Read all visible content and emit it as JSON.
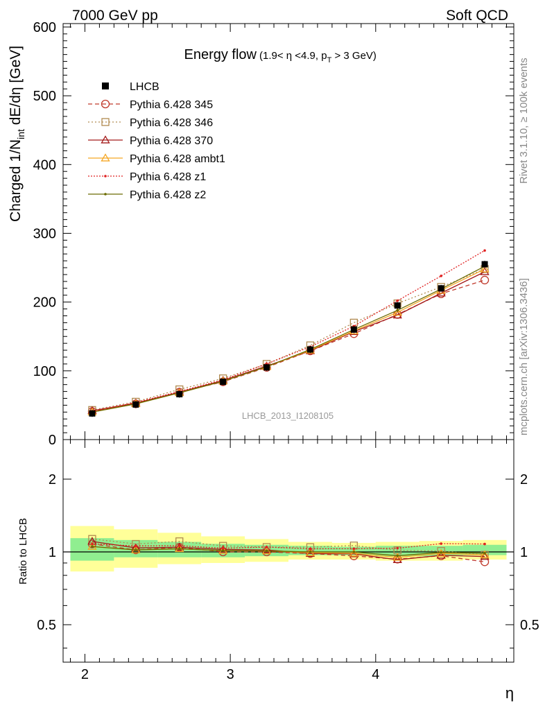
{
  "header": {
    "left": "7000 GeV pp",
    "right": "Soft QCD"
  },
  "side_labels": {
    "rivet": "Rivet 3.1.10, ≥ 100k events",
    "mcplots": "mcplots.cern.ch [arXiv:1306.3436]"
  },
  "chart_data": {
    "type": "line",
    "title": "Energy flow",
    "title_detail": "(1.9< η <4.9, p_T > 3 GeV)",
    "watermark": "LHCB_2013_I1208105",
    "xlabel": "η",
    "ylabel": "Charged 1/N_int dE/dη [GeV]",
    "ratio_ylabel": "Ratio to LHCB",
    "xlim": [
      1.85,
      4.95
    ],
    "ylim": [
      0,
      605
    ],
    "ratio_ylim": [
      0.35,
      2.25
    ],
    "xticks": [
      "2",
      "3",
      "4"
    ],
    "yticks": [
      "0",
      "100",
      "200",
      "300",
      "400",
      "500",
      "600"
    ],
    "ratio_yticks": [
      "0.5",
      "1",
      "2"
    ],
    "log_ratio_axis": true,
    "bin_edges": [
      1.9,
      2.2,
      2.5,
      2.8,
      3.1,
      3.4,
      3.7,
      4.0,
      4.3,
      4.6,
      4.9
    ],
    "x": [
      2.05,
      2.35,
      2.65,
      2.95,
      3.25,
      3.55,
      3.85,
      4.15,
      4.45,
      4.75
    ],
    "data": {
      "name": "LHCB",
      "values": [
        38,
        51,
        66,
        84,
        105,
        131,
        160,
        195,
        220,
        255
      ],
      "stat_band": [
        [
          0.92,
          1.14
        ],
        [
          0.95,
          1.12
        ],
        [
          0.95,
          1.1
        ],
        [
          0.95,
          1.08
        ],
        [
          0.96,
          1.07
        ],
        [
          0.97,
          1.06
        ],
        [
          0.97,
          1.05
        ],
        [
          0.96,
          1.06
        ],
        [
          0.96,
          1.06
        ],
        [
          0.97,
          1.07
        ]
      ],
      "total_band": [
        [
          0.83,
          1.28
        ],
        [
          0.86,
          1.24
        ],
        [
          0.89,
          1.2
        ],
        [
          0.9,
          1.16
        ],
        [
          0.91,
          1.13
        ],
        [
          0.93,
          1.1
        ],
        [
          0.93,
          1.09
        ],
        [
          0.92,
          1.1
        ],
        [
          0.92,
          1.11
        ],
        [
          0.93,
          1.12
        ]
      ]
    },
    "series": [
      {
        "name": "Pythia 6.428 345",
        "color": "#c0392b",
        "dash": "6,4",
        "marker": "circle-open",
        "values": [
          41,
          52,
          69,
          84,
          105,
          129,
          154,
          182,
          212,
          232
        ]
      },
      {
        "name": "Pythia 6.428 346",
        "color": "#b08a50",
        "dash": "2,3",
        "marker": "square-open",
        "values": [
          43,
          55,
          73,
          89,
          110,
          137,
          170,
          198,
          222,
          248
        ]
      },
      {
        "name": "Pythia 6.428 370",
        "color": "#a31a1a",
        "dash": "",
        "marker": "triangle-open",
        "values": [
          42,
          53,
          69,
          86,
          107,
          129,
          157,
          181,
          213,
          244
        ]
      },
      {
        "name": "Pythia 6.428 ambt1",
        "color": "#f5a623",
        "dash": "",
        "marker": "triangle-open",
        "values": [
          40,
          52,
          68,
          85,
          106,
          130,
          158,
          185,
          217,
          248
        ]
      },
      {
        "name": "Pythia 6.428 z1",
        "color": "#e02020",
        "dash": "2,2",
        "marker": "dot",
        "values": [
          41,
          54,
          70,
          87,
          110,
          135,
          165,
          202,
          238,
          275
        ]
      },
      {
        "name": "Pythia 6.428 z2",
        "color": "#6b6b00",
        "dash": "",
        "marker": "dot",
        "values": [
          40,
          52,
          68,
          85,
          106,
          131,
          160,
          188,
          219,
          252
        ]
      }
    ]
  }
}
